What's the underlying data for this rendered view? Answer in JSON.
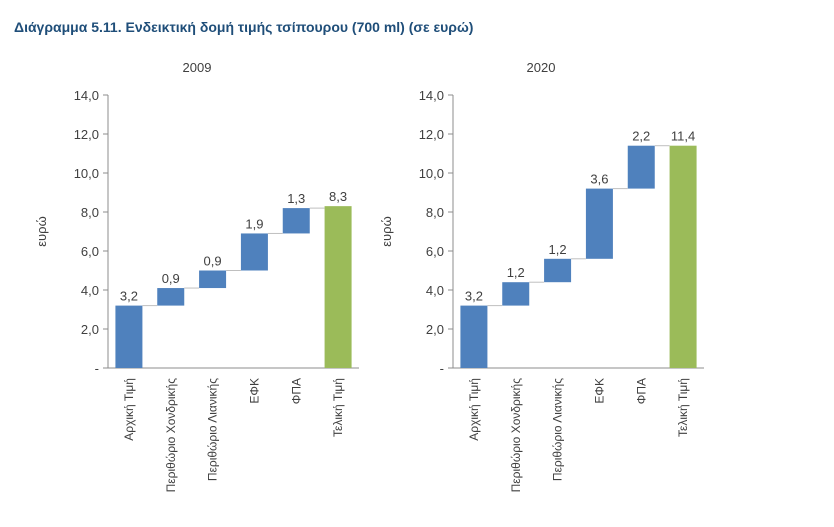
{
  "figure_title": "Διάγραμμα 5.11. Ενδεικτική δομή τιμής τσίπουρου (700 ml) (σε ευρώ)",
  "colors": {
    "increment": "#4f81bd",
    "total": "#9bbb59",
    "title": "#1f4e79",
    "axis": "#404040"
  },
  "chart_data": [
    {
      "type": "bar",
      "subtype": "waterfall",
      "title": "2009",
      "ylabel": "ευρώ",
      "xlabel": "",
      "ylim": [
        0,
        14
      ],
      "yticks": [
        "-",
        "2,0",
        "4,0",
        "6,0",
        "8,0",
        "10,0",
        "12,0",
        "14,0"
      ],
      "categories": [
        "Αρχική Τιμή",
        "Περιθώριο Χονδρικής",
        "Περιθώριο Λιανικής",
        "ΕΦΚ",
        "ΦΠΑ",
        "Τελική Τιμή"
      ],
      "values": [
        3.2,
        0.9,
        0.9,
        1.9,
        1.3,
        8.3
      ],
      "labels": [
        "3,2",
        "0,9",
        "0,9",
        "1,9",
        "1,3",
        "8,3"
      ],
      "total_index": 5
    },
    {
      "type": "bar",
      "subtype": "waterfall",
      "title": "2020",
      "ylabel": "ευρώ",
      "xlabel": "",
      "ylim": [
        0,
        14
      ],
      "yticks": [
        "-",
        "2,0",
        "4,0",
        "6,0",
        "8,0",
        "10,0",
        "12,0",
        "14,0"
      ],
      "categories": [
        "Αρχική Τιμή",
        "Περιθώριο Χονδρικής",
        "Περιθώριο Λιανικής",
        "ΕΦΚ",
        "ΦΠΑ",
        "Τελική Τιμή"
      ],
      "values": [
        3.2,
        1.2,
        1.2,
        3.6,
        2.2,
        11.4
      ],
      "labels": [
        "3,2",
        "1,2",
        "1,2",
        "3,6",
        "2,2",
        "11,4"
      ],
      "total_index": 5
    }
  ]
}
